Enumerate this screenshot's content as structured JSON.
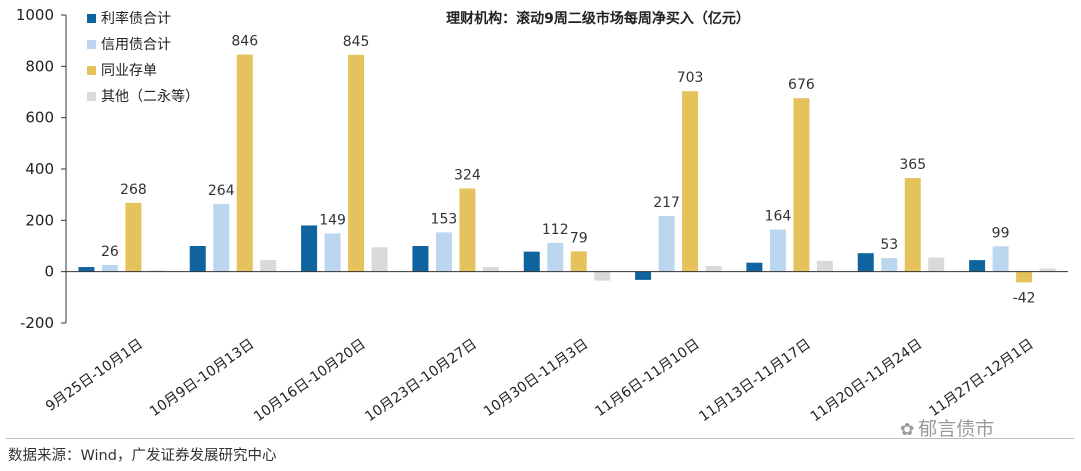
{
  "chart_data": {
    "type": "bar",
    "title": "理财机构：滚动9周二级市场每周净买入（亿元）",
    "ylim": [
      -200,
      1000
    ],
    "yticks": [
      -200,
      0,
      200,
      400,
      600,
      800,
      1000
    ],
    "categories": [
      "9月25日-10月1日",
      "10月9日-10月13日",
      "10月16日-10月20日",
      "10月23日-10月27日",
      "10月30日-11月3日",
      "11月6日-11月10日",
      "11月13日-11月17日",
      "11月20日-11月24日",
      "11月27日-12月1日"
    ],
    "series": [
      {
        "name": "利率债合计",
        "color": "#0f64a0",
        "values": [
          18,
          100,
          180,
          100,
          78,
          -32,
          35,
          72,
          45
        ],
        "labels": [
          null,
          null,
          null,
          null,
          null,
          null,
          null,
          null,
          null
        ]
      },
      {
        "name": "信用债合计",
        "color": "#bcd6ef",
        "values": [
          26,
          264,
          149,
          153,
          112,
          217,
          164,
          53,
          99
        ],
        "labels": [
          "26",
          "264",
          "149",
          "153",
          "112",
          "217",
          "164",
          "53",
          "99"
        ]
      },
      {
        "name": "同业存单",
        "color": "#e5c25b",
        "values": [
          268,
          846,
          845,
          324,
          79,
          703,
          676,
          365,
          -42
        ],
        "labels": [
          "268",
          "846",
          "845",
          "324",
          "79",
          "703",
          "676",
          "365",
          "-42"
        ]
      },
      {
        "name": "其他（二永等）",
        "color": "#d9d9d9",
        "values": [
          5,
          45,
          95,
          18,
          -35,
          22,
          42,
          55,
          12
        ],
        "labels": [
          null,
          null,
          null,
          null,
          null,
          null,
          null,
          null,
          null
        ]
      }
    ],
    "legend_position": "top-left",
    "grid": false
  },
  "source": "数据来源：Wind，广发证券发展研究中心",
  "watermark": "郁言债市",
  "watermark_icon": "wechat-icon"
}
